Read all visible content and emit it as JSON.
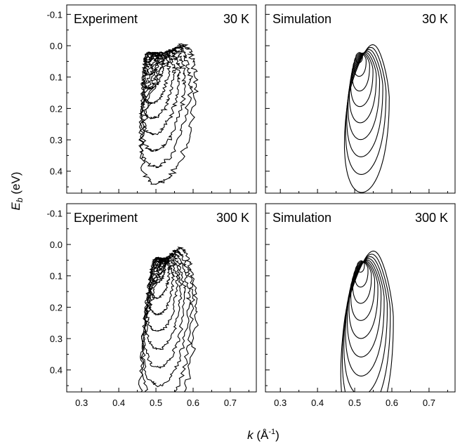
{
  "chart_data": {
    "type": "contour",
    "layout": "2x2 grid, shared axes",
    "xlabel_symbol": "k",
    "xlabel_unit_prefix": " (Å",
    "xlabel_unit_exponent": "-1",
    "xlabel_unit_suffix": ")",
    "ylabel_symbol": "E",
    "ylabel_subscript": "b",
    "ylabel_unit": " (eV)",
    "xlim": [
      0.26,
      0.77
    ],
    "ylim": [
      -0.13,
      0.47
    ],
    "y_inverted": true,
    "x_major_ticks": [
      0.3,
      0.4,
      0.5,
      0.6,
      0.7
    ],
    "x_tick_labels": [
      "0.3",
      "0.4",
      "0.5",
      "0.6",
      "0.7"
    ],
    "y_major_ticks": [
      -0.1,
      0.0,
      0.1,
      0.2,
      0.3,
      0.4
    ],
    "y_tick_labels": [
      "-0.1",
      "0.0",
      "0.1",
      "0.2",
      "0.3",
      "0.4"
    ],
    "line_color": "#000000",
    "panels": [
      {
        "label": "Experiment",
        "temperature": "30 K",
        "row": 0,
        "col": 0,
        "kind": "experiment",
        "peak_k": 0.475,
        "peak_eb": 0.02,
        "width_k": 0.06,
        "width_eb": 0.15,
        "tilt": 0.9,
        "levels": 9,
        "noise": 0.012
      },
      {
        "label": "Simulation",
        "temperature": "30 K",
        "row": 0,
        "col": 1,
        "kind": "simulation",
        "peak_k": 0.51,
        "peak_eb": 0.02,
        "width_k": 0.055,
        "width_eb": 0.16,
        "tilt": 0.35,
        "levels": 9,
        "noise": 0.0
      },
      {
        "label": "Experiment",
        "temperature": "300 K",
        "row": 1,
        "col": 0,
        "kind": "experiment",
        "peak_k": 0.5,
        "peak_eb": 0.04,
        "width_k": 0.065,
        "width_eb": 0.19,
        "tilt": 0.55,
        "levels": 10,
        "noise": 0.01
      },
      {
        "label": "Simulation",
        "temperature": "300 K",
        "row": 1,
        "col": 1,
        "kind": "simulation",
        "peak_k": 0.515,
        "peak_eb": 0.05,
        "width_k": 0.065,
        "width_eb": 0.2,
        "tilt": 0.3,
        "levels": 10,
        "noise": 0.0
      }
    ]
  }
}
